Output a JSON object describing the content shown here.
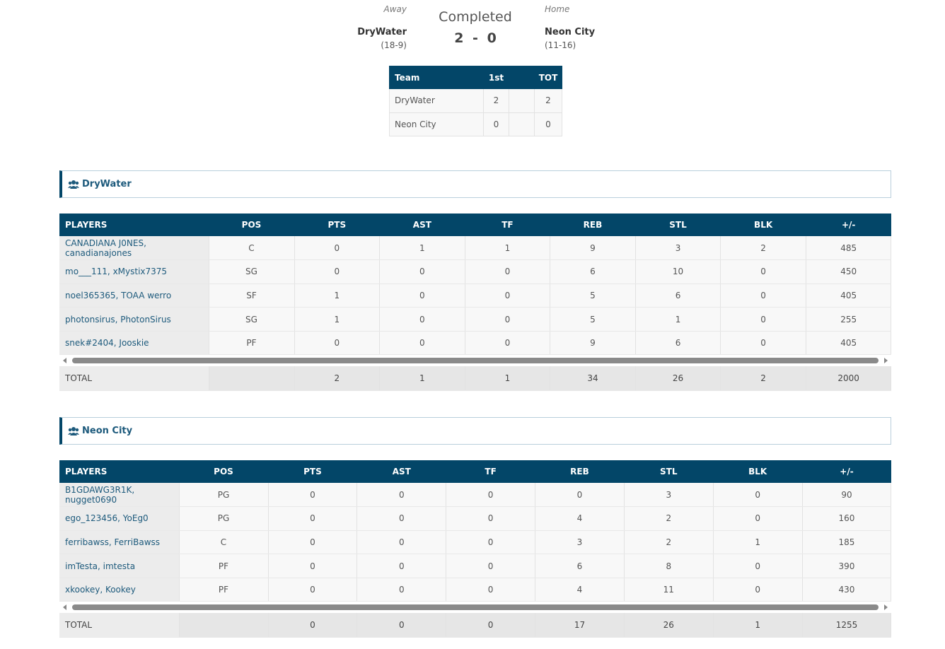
{
  "header": {
    "away_label": "Away",
    "away_team": "DryWater",
    "away_record": "(18-9)",
    "status": "Completed",
    "score_away": 2,
    "score_separator": "-",
    "score_home": 0,
    "home_label": "Home",
    "home_team": "Neon City",
    "home_record": "(11-16)"
  },
  "linescore": {
    "columns": {
      "team": "Team",
      "first": "1st",
      "total": "TOT"
    },
    "rows": [
      {
        "team": "DryWater",
        "first": 2,
        "total": 2
      },
      {
        "team": "Neon City",
        "first": 0,
        "total": 0
      }
    ]
  },
  "boxscores": [
    {
      "team": "DryWater",
      "columns": [
        "PLAYERS",
        "POS",
        "PTS",
        "AST",
        "TF",
        "REB",
        "STL",
        "BLK",
        "+/-"
      ],
      "rows": [
        [
          "CANADIANA J0NES, canadianajones",
          "C",
          0,
          1,
          1,
          9,
          3,
          2,
          485
        ],
        [
          "mo___111, xMystix7375",
          "SG",
          0,
          0,
          0,
          6,
          10,
          0,
          450
        ],
        [
          "noel365365, TOAA werro",
          "SF",
          1,
          0,
          0,
          5,
          6,
          0,
          405
        ],
        [
          "photonsirus, PhotonSirus",
          "SG",
          1,
          0,
          0,
          5,
          1,
          0,
          255
        ],
        [
          "snek#2404, Jooskie",
          "PF",
          0,
          0,
          0,
          9,
          6,
          0,
          405
        ]
      ],
      "total": {
        "label": "TOTAL",
        "values": [
          2,
          1,
          1,
          34,
          26,
          2,
          2000
        ]
      }
    },
    {
      "team": "Neon City",
      "columns": [
        "PLAYERS",
        "POS",
        "PTS",
        "AST",
        "TF",
        "REB",
        "STL",
        "BLK",
        "+/-"
      ],
      "rows": [
        [
          "B1GDAWG3R1K, nugget0690",
          "PG",
          0,
          0,
          0,
          0,
          3,
          0,
          90
        ],
        [
          "ego_123456, YoEg0",
          "PG",
          0,
          0,
          0,
          4,
          2,
          0,
          160
        ],
        [
          "ferribawss, FerriBawss",
          "C",
          0,
          0,
          0,
          3,
          2,
          1,
          185
        ],
        [
          "imTesta, imtesta",
          "PF",
          0,
          0,
          0,
          6,
          8,
          0,
          390
        ],
        [
          "xkookey, Kookey",
          "PF",
          0,
          0,
          0,
          4,
          11,
          0,
          430
        ]
      ],
      "total": {
        "label": "TOTAL",
        "values": [
          0,
          0,
          0,
          17,
          26,
          1,
          1255
        ]
      }
    }
  ]
}
